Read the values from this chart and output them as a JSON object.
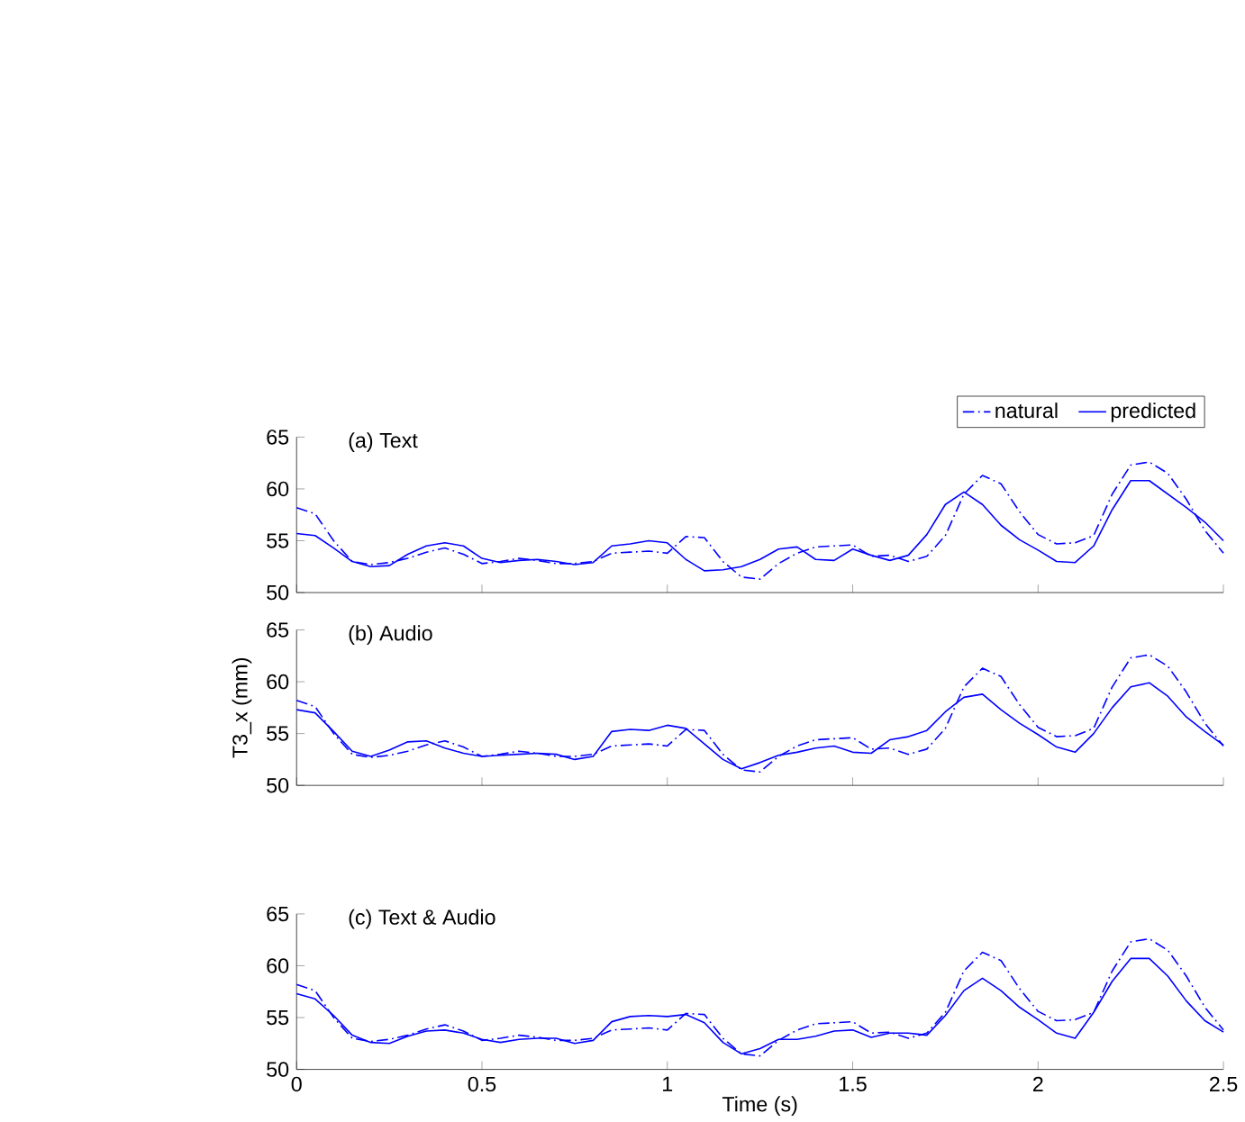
{
  "chart_data": [
    {
      "type": "line",
      "title": "(a) Text",
      "xlim": [
        0,
        2.5
      ],
      "ylim": [
        50,
        65
      ],
      "xticks": [
        0,
        0.5,
        1,
        1.5,
        2,
        2.5
      ],
      "yticks": [
        50,
        55,
        60,
        65
      ],
      "tick_labels": "y",
      "legend": "top right",
      "x": [
        0,
        0.05,
        0.1,
        0.15,
        0.2,
        0.25,
        0.3,
        0.35,
        0.4,
        0.45,
        0.5,
        0.55,
        0.6,
        0.65,
        0.7,
        0.75,
        0.8,
        0.85,
        0.9,
        0.95,
        1.0,
        1.05,
        1.1,
        1.15,
        1.2,
        1.25,
        1.3,
        1.35,
        1.4,
        1.45,
        1.5,
        1.55,
        1.6,
        1.65,
        1.7,
        1.75,
        1.8,
        1.85,
        1.9,
        1.95,
        2.0,
        2.05,
        2.1,
        2.15,
        2.2,
        2.25,
        2.3,
        2.35,
        2.4,
        2.45,
        2.5
      ],
      "series": [
        {
          "name": "natural",
          "color": "#0000ff",
          "line_style": "dashdot",
          "values": [
            58.2,
            57.6,
            55,
            53,
            52.7,
            52.9,
            53.3,
            53.9,
            54.3,
            53.7,
            52.8,
            53,
            53.3,
            53.1,
            52.8,
            52.8,
            53,
            53.8,
            53.9,
            54,
            53.8,
            55.4,
            55.3,
            53,
            51.5,
            51.3,
            52.8,
            53.8,
            54.4,
            54.5,
            54.6,
            53.5,
            53.6,
            53,
            53.5,
            55.5,
            59.5,
            61.3,
            60.5,
            57.8,
            55.6,
            54.7,
            54.8,
            55.5,
            59.5,
            62.3,
            62.6,
            61.5,
            59,
            56,
            53.8
          ]
        },
        {
          "name": "predicted",
          "color": "#0000ff",
          "line_style": "solid",
          "values": [
            55.7,
            55.5,
            54.3,
            53,
            52.5,
            52.6,
            53.7,
            54.5,
            54.8,
            54.5,
            53.3,
            52.9,
            53.1,
            53.2,
            53,
            52.7,
            52.9,
            54.5,
            54.7,
            55,
            54.8,
            53.2,
            52.1,
            52.2,
            52.5,
            53.2,
            54.2,
            54.4,
            53.2,
            53.1,
            54.2,
            53.6,
            53.1,
            53.6,
            55.6,
            58.5,
            59.7,
            58.5,
            56.5,
            55.1,
            54.1,
            53,
            52.9,
            54.5,
            58,
            60.8,
            60.8,
            59.5,
            58.2,
            56.8,
            55
          ]
        }
      ]
    },
    {
      "type": "line",
      "title": "(b) Audio",
      "ylabel": "T3_x (mm)",
      "xlim": [
        0,
        2.5
      ],
      "ylim": [
        50,
        65
      ],
      "xticks": [
        0,
        0.5,
        1,
        1.5,
        2,
        2.5
      ],
      "yticks": [
        50,
        55,
        60,
        65
      ],
      "tick_labels": "y",
      "x": [
        0,
        0.05,
        0.1,
        0.15,
        0.2,
        0.25,
        0.3,
        0.35,
        0.4,
        0.45,
        0.5,
        0.55,
        0.6,
        0.65,
        0.7,
        0.75,
        0.8,
        0.85,
        0.9,
        0.95,
        1.0,
        1.05,
        1.1,
        1.15,
        1.2,
        1.25,
        1.3,
        1.35,
        1.4,
        1.45,
        1.5,
        1.55,
        1.6,
        1.65,
        1.7,
        1.75,
        1.8,
        1.85,
        1.9,
        1.95,
        2.0,
        2.05,
        2.1,
        2.15,
        2.2,
        2.25,
        2.3,
        2.35,
        2.4,
        2.45,
        2.5
      ],
      "series": [
        {
          "color": "#0000ff",
          "line_style": "dashdot",
          "values": [
            58.2,
            57.6,
            55,
            53,
            52.7,
            52.9,
            53.3,
            53.9,
            54.3,
            53.7,
            52.8,
            53,
            53.3,
            53.1,
            52.8,
            52.8,
            53,
            53.8,
            53.9,
            54,
            53.8,
            55.4,
            55.3,
            53,
            51.5,
            51.3,
            52.8,
            53.8,
            54.4,
            54.5,
            54.6,
            53.5,
            53.6,
            53,
            53.5,
            55.5,
            59.5,
            61.3,
            60.5,
            57.8,
            55.6,
            54.7,
            54.8,
            55.5,
            59.5,
            62.3,
            62.6,
            61.5,
            59,
            56,
            53.8
          ]
        },
        {
          "color": "#0000ff",
          "line_style": "solid",
          "values": [
            57.3,
            57,
            55.2,
            53.3,
            52.8,
            53.4,
            54.2,
            54.3,
            53.6,
            53.1,
            52.8,
            52.9,
            53,
            53.1,
            53,
            52.5,
            52.8,
            55.2,
            55.4,
            55.3,
            55.8,
            55.5,
            54,
            52.5,
            51.6,
            52.2,
            52.9,
            53.2,
            53.6,
            53.8,
            53.2,
            53.1,
            54.4,
            54.7,
            55.3,
            57.1,
            58.5,
            58.8,
            57.3,
            56,
            54.9,
            53.7,
            53.2,
            55,
            57.5,
            59.5,
            59.9,
            58.6,
            56.6,
            55.2,
            53.9
          ]
        }
      ]
    },
    {
      "type": "line",
      "title": "(c) Text & Audio",
      "xlabel": "Time (s)",
      "xlim": [
        0,
        2.5
      ],
      "ylim": [
        50,
        65
      ],
      "xticks": [
        0,
        0.5,
        1,
        1.5,
        2,
        2.5
      ],
      "yticks": [
        50,
        55,
        60,
        65
      ],
      "x": [
        0,
        0.05,
        0.1,
        0.15,
        0.2,
        0.25,
        0.3,
        0.35,
        0.4,
        0.45,
        0.5,
        0.55,
        0.6,
        0.65,
        0.7,
        0.75,
        0.8,
        0.85,
        0.9,
        0.95,
        1.0,
        1.05,
        1.1,
        1.15,
        1.2,
        1.25,
        1.3,
        1.35,
        1.4,
        1.45,
        1.5,
        1.55,
        1.6,
        1.65,
        1.7,
        1.75,
        1.8,
        1.85,
        1.9,
        1.95,
        2.0,
        2.05,
        2.1,
        2.15,
        2.2,
        2.25,
        2.3,
        2.35,
        2.4,
        2.45,
        2.5
      ],
      "series": [
        {
          "color": "#0000ff",
          "line_style": "dashdot",
          "values": [
            58.2,
            57.6,
            55,
            53,
            52.7,
            52.9,
            53.3,
            53.9,
            54.3,
            53.7,
            52.8,
            53,
            53.3,
            53.1,
            52.8,
            52.8,
            53,
            53.8,
            53.9,
            54,
            53.8,
            55.4,
            55.3,
            53,
            51.5,
            51.3,
            52.8,
            53.8,
            54.4,
            54.5,
            54.6,
            53.5,
            53.6,
            53,
            53.5,
            55.5,
            59.5,
            61.3,
            60.5,
            57.8,
            55.6,
            54.7,
            54.8,
            55.5,
            59.5,
            62.3,
            62.6,
            61.5,
            59,
            56,
            53.8
          ]
        },
        {
          "color": "#0000ff",
          "line_style": "solid",
          "values": [
            57.3,
            56.8,
            55.2,
            53.3,
            52.6,
            52.5,
            53.2,
            53.7,
            53.8,
            53.5,
            52.9,
            52.6,
            52.9,
            53,
            53,
            52.5,
            52.8,
            54.6,
            55.1,
            55.2,
            55.1,
            55.3,
            54.5,
            52.6,
            51.5,
            52,
            52.9,
            52.9,
            53.2,
            53.7,
            53.8,
            53.1,
            53.5,
            53.5,
            53.3,
            55.2,
            57.6,
            58.8,
            57.6,
            56,
            54.8,
            53.5,
            53,
            55.5,
            58.5,
            60.7,
            60.7,
            59,
            56.6,
            54.7,
            53.6
          ]
        }
      ]
    }
  ]
}
